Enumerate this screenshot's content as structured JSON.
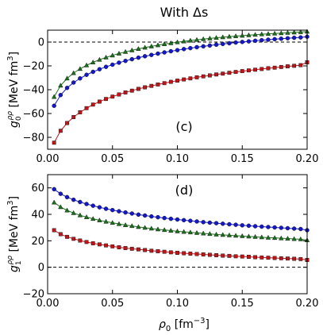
{
  "figure": {
    "title": "With Δs",
    "shared_xlabel_main": "ρ",
    "shared_xlabel_sub": "0",
    "shared_xlabel_unit": " [fm",
    "shared_xlabel_unit_exp": "−3",
    "shared_xlabel_unit_close": "]"
  },
  "colors": {
    "red": "#c0151a",
    "blue": "#1418c8",
    "green": "#1e6f1e",
    "axis": "#000000",
    "zero_line": "#000000"
  },
  "chart_data": [
    {
      "type": "line",
      "panel_label": "(c)",
      "ylabel_main": "g",
      "ylabel_sub": "0",
      "ylabel_sup": "ρρ",
      "ylabel_unit": " [MeV fm",
      "ylabel_unit_exp": "3",
      "ylabel_unit_close": "]",
      "xlim": [
        0,
        0.2
      ],
      "ylim": [
        -90,
        10
      ],
      "xticks": [
        0.0,
        0.05,
        0.1,
        0.15,
        0.2
      ],
      "xtick_labels": [
        "0.00",
        "0.05",
        "0.10",
        "0.15",
        "0.20"
      ],
      "yticks": [
        -80,
        -60,
        -40,
        -20,
        0
      ],
      "ytick_labels": [
        "−80",
        "−60",
        "−40",
        "−20",
        "0"
      ],
      "zero_line": true,
      "x": [
        0.005,
        0.01,
        0.015,
        0.02,
        0.025,
        0.03,
        0.035,
        0.04,
        0.045,
        0.05,
        0.055,
        0.06,
        0.065,
        0.07,
        0.075,
        0.08,
        0.085,
        0.09,
        0.095,
        0.1,
        0.105,
        0.11,
        0.115,
        0.12,
        0.125,
        0.13,
        0.135,
        0.14,
        0.145,
        0.15,
        0.155,
        0.16,
        0.165,
        0.17,
        0.175,
        0.18,
        0.185,
        0.19,
        0.195,
        0.2
      ],
      "series": [
        {
          "color": "red",
          "marker": "square",
          "values": [
            -84.5,
            -74.5,
            -68,
            -63,
            -59,
            -55.5,
            -52.5,
            -50,
            -47.8,
            -45.8,
            -44,
            -42.3,
            -40.8,
            -39.3,
            -38,
            -36.8,
            -35.6,
            -34.5,
            -33.4,
            -32.4,
            -31.4,
            -30.5,
            -29.6,
            -28.8,
            -28,
            -27.2,
            -26.5,
            -25.8,
            -25.1,
            -24.4,
            -23.8,
            -23.2,
            -22.6,
            -22,
            -21.5,
            -20.9,
            -20.4,
            -19.9,
            -19.4,
            -17
          ]
        },
        {
          "color": "blue",
          "marker": "circle",
          "values": [
            -53.5,
            -44.5,
            -38.5,
            -34,
            -30.5,
            -27.5,
            -25,
            -22.8,
            -20.8,
            -19,
            -17.3,
            -15.8,
            -14.4,
            -13.1,
            -11.9,
            -10.8,
            -9.7,
            -8.7,
            -7.7,
            -6.8,
            -5.9,
            -5.1,
            -4.3,
            -3.6,
            -2.9,
            -2.2,
            -1.6,
            -1,
            -0.4,
            0.1,
            0.6,
            1.1,
            1.6,
            2,
            2.4,
            2.8,
            3.2,
            3.6,
            3.9,
            4.5
          ]
        },
        {
          "color": "green",
          "marker": "triangle",
          "values": [
            -46,
            -36.5,
            -30.5,
            -26,
            -22.5,
            -19.5,
            -17,
            -14.8,
            -12.9,
            -11.2,
            -9.6,
            -8.2,
            -6.9,
            -5.7,
            -4.6,
            -3.6,
            -2.6,
            -1.7,
            -0.9,
            -0.1,
            0.6,
            1.3,
            1.9,
            2.5,
            3.1,
            3.6,
            4.1,
            4.6,
            5,
            5.4,
            5.8,
            6.2,
            6.6,
            6.9,
            7.2,
            7.5,
            7.8,
            8.1,
            8.4,
            8.8
          ]
        }
      ]
    },
    {
      "type": "line",
      "panel_label": "(d)",
      "ylabel_main": "g",
      "ylabel_sub": "1",
      "ylabel_sup": "ρρ",
      "ylabel_unit": " [MeV fm",
      "ylabel_unit_exp": "3",
      "ylabel_unit_close": "]",
      "xlim": [
        0,
        0.2
      ],
      "ylim": [
        -20,
        70
      ],
      "xticks": [
        0.0,
        0.05,
        0.1,
        0.15,
        0.2
      ],
      "xtick_labels": [
        "0.00",
        "0.05",
        "0.10",
        "0.15",
        "0.20"
      ],
      "yticks": [
        -20,
        0,
        20,
        40,
        60
      ],
      "ytick_labels": [
        "−20",
        "0",
        "20",
        "40",
        "60"
      ],
      "zero_line": true,
      "x": [
        0.005,
        0.01,
        0.015,
        0.02,
        0.025,
        0.03,
        0.035,
        0.04,
        0.045,
        0.05,
        0.055,
        0.06,
        0.065,
        0.07,
        0.075,
        0.08,
        0.085,
        0.09,
        0.095,
        0.1,
        0.105,
        0.11,
        0.115,
        0.12,
        0.125,
        0.13,
        0.135,
        0.14,
        0.145,
        0.15,
        0.155,
        0.16,
        0.165,
        0.17,
        0.175,
        0.18,
        0.185,
        0.19,
        0.195,
        0.2
      ],
      "series": [
        {
          "color": "red",
          "marker": "square",
          "values": [
            28,
            25,
            23,
            21.5,
            20.2,
            19.1,
            18.1,
            17.3,
            16.5,
            15.8,
            15.1,
            14.5,
            14,
            13.5,
            13,
            12.5,
            12.1,
            11.7,
            11.3,
            10.9,
            10.6,
            10.3,
            10,
            9.7,
            9.4,
            9.1,
            8.8,
            8.6,
            8.3,
            8.1,
            7.9,
            7.6,
            7.4,
            7.2,
            7,
            6.8,
            6.6,
            6.4,
            6.2,
            5.5
          ]
        },
        {
          "color": "blue",
          "marker": "circle",
          "values": [
            59,
            55.5,
            53,
            51,
            49.3,
            47.8,
            46.5,
            45.3,
            44.2,
            43.2,
            42.3,
            41.4,
            40.6,
            39.8,
            39.1,
            38.4,
            37.8,
            37.2,
            36.6,
            36.1,
            35.6,
            35.1,
            34.6,
            34.1,
            33.7,
            33.3,
            32.9,
            32.5,
            32.1,
            31.7,
            31.4,
            31,
            30.7,
            30.4,
            30.1,
            29.8,
            29.5,
            29.2,
            28.9,
            28
          ]
        },
        {
          "color": "green",
          "marker": "triangle",
          "values": [
            49,
            45.5,
            43,
            41,
            39.3,
            37.9,
            36.6,
            35.5,
            34.5,
            33.6,
            32.7,
            31.9,
            31.2,
            30.5,
            29.9,
            29.3,
            28.7,
            28.2,
            27.7,
            27.2,
            26.8,
            26.4,
            26,
            25.6,
            25.2,
            24.8,
            24.5,
            24.2,
            23.9,
            23.6,
            23.3,
            23,
            22.7,
            22.4,
            22.2,
            21.9,
            21.7,
            21.4,
            21.2,
            20.5
          ]
        }
      ]
    }
  ]
}
